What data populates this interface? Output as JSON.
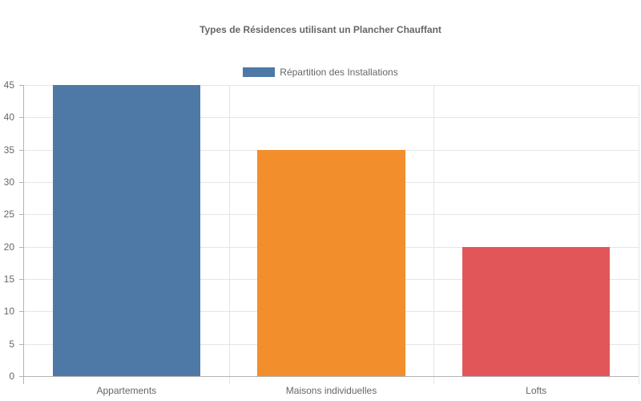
{
  "chart_data": {
    "type": "bar",
    "title": "Types de Résidences utilisant un Plancher Chauffant",
    "categories": [
      "Appartements",
      "Maisons individuelles",
      "Lofts"
    ],
    "series": [
      {
        "name": "Répartition des Installations",
        "values": [
          45,
          35,
          20
        ],
        "colors": [
          "#4e79a7",
          "#f28e2c",
          "#e15759"
        ]
      }
    ],
    "xlabel": "",
    "ylabel": "",
    "ylim": [
      0,
      45
    ],
    "yticks": [
      0,
      5,
      10,
      15,
      20,
      25,
      30,
      35,
      40,
      45
    ],
    "grid": true,
    "legend_position": "top"
  },
  "legend": {
    "label": "Répartition des Installations",
    "color": "#4e79a7"
  }
}
